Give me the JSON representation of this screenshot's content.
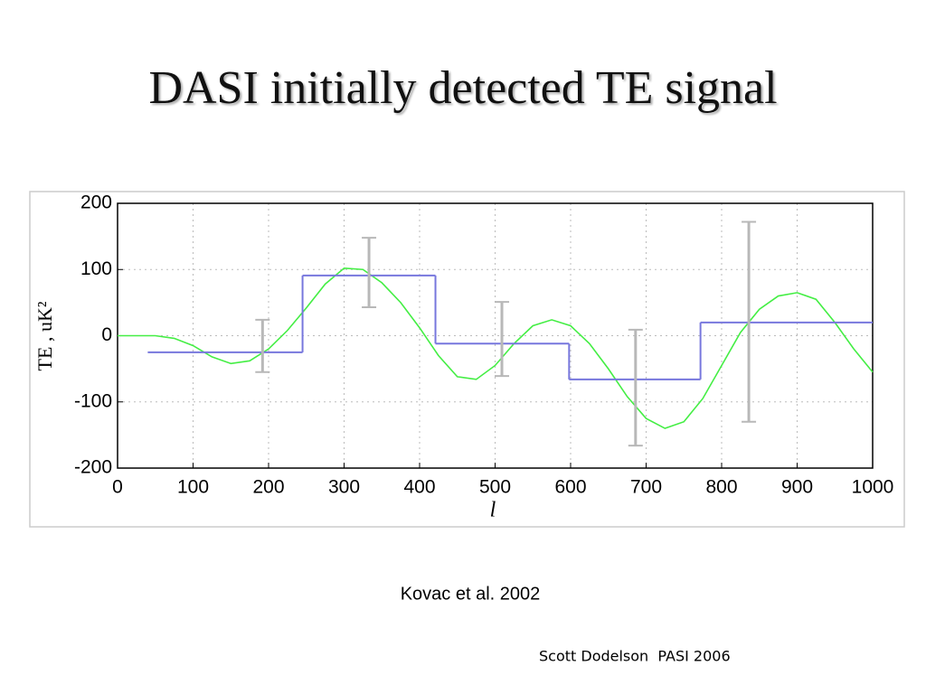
{
  "chart_data": {
    "type": "line",
    "title": "DASI initially detected TE signal",
    "xlabel": "l",
    "ylabel": "TE , uK²",
    "xlim": [
      0,
      1000
    ],
    "ylim": [
      -200,
      200
    ],
    "xticks": [
      0,
      100,
      200,
      300,
      400,
      500,
      600,
      700,
      800,
      900,
      1000
    ],
    "yticks": [
      -200,
      -100,
      0,
      100,
      200
    ],
    "grid": true,
    "series": [
      {
        "type": "line",
        "color": "#44ee44",
        "x": [
          0,
          25,
          50,
          75,
          100,
          125,
          150,
          175,
          200,
          225,
          250,
          275,
          300,
          325,
          350,
          375,
          400,
          425,
          450,
          475,
          500,
          525,
          550,
          575,
          600,
          625,
          650,
          675,
          700,
          725,
          750,
          775,
          800,
          825,
          850,
          875,
          900,
          925,
          950,
          975,
          1000
        ],
        "values": [
          0,
          0,
          0,
          -4,
          -15,
          -32,
          -42,
          -38,
          -20,
          8,
          42,
          78,
          102,
          100,
          80,
          50,
          12,
          -30,
          -62,
          -66,
          -45,
          -12,
          15,
          24,
          15,
          -12,
          -50,
          -92,
          -125,
          -140,
          -130,
          -95,
          -45,
          5,
          40,
          60,
          65,
          55,
          20,
          -20,
          -55
        ]
      },
      {
        "type": "step",
        "color": "#7777dd",
        "edges": [
          40,
          245,
          421,
          598,
          772,
          1000
        ],
        "values": [
          -25,
          91,
          -12,
          -66,
          20
        ]
      },
      {
        "type": "errorbar",
        "color": "#b8b8b8",
        "x": [
          192,
          333,
          509,
          686,
          836
        ],
        "low": [
          -55,
          43,
          -61,
          -166,
          -130
        ],
        "high": [
          24,
          148,
          51,
          9,
          172
        ]
      }
    ],
    "annotations": [
      "Kovac et al. 2002",
      "Scott Dodelson  PASI 2006"
    ]
  }
}
